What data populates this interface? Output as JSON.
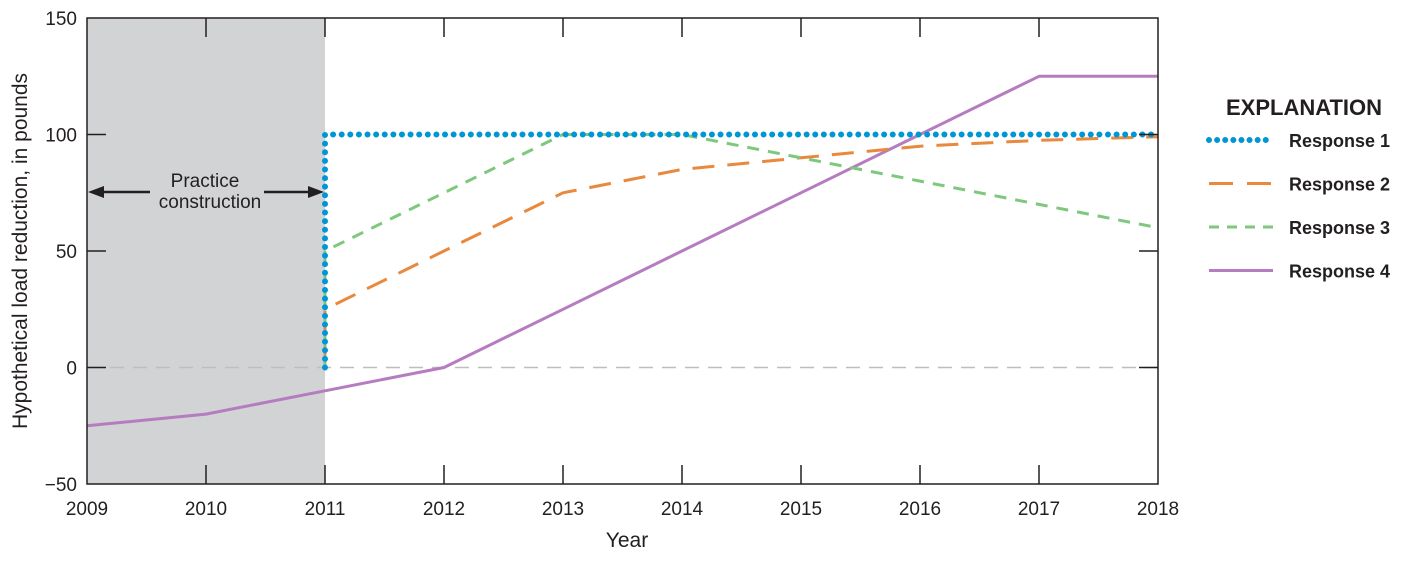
{
  "chart_data": {
    "type": "line",
    "title": "",
    "xlabel": "Year",
    "ylabel": "Hypothetical load reduction, in pounds",
    "xlim": [
      2009,
      2018
    ],
    "ylim": [
      -50,
      150
    ],
    "x_ticks": [
      2009,
      2010,
      2011,
      2012,
      2013,
      2014,
      2015,
      2016,
      2017,
      2018
    ],
    "x_tick_labels": [
      "2009",
      "2010",
      "2011",
      "2012",
      "2013",
      "2014",
      "2015",
      "2016",
      "2017",
      "2018"
    ],
    "y_ticks": [
      -50,
      0,
      50,
      100,
      150
    ],
    "y_tick_labels": [
      "−50",
      "0",
      "50",
      "100",
      "150"
    ],
    "grid": false,
    "reference_line": {
      "y": 0,
      "style": "dashed",
      "color": "#bcbec0"
    },
    "shaded_region": {
      "x": [
        2009,
        2011
      ],
      "color": "#d1d3d4",
      "annotation": [
        "Practice",
        "construction"
      ]
    },
    "legend": {
      "title": "EXPLANATION",
      "position": "right"
    },
    "series": [
      {
        "name": "Response 1",
        "style": "dotted",
        "color": "#0096d6",
        "points": [
          [
            2011,
            0
          ],
          [
            2011,
            100
          ],
          [
            2018,
            100
          ]
        ]
      },
      {
        "name": "Response 2",
        "style": "long-dash",
        "color": "#e8893d",
        "points": [
          [
            2011,
            0
          ],
          [
            2011,
            25
          ],
          [
            2012,
            50
          ],
          [
            2013,
            75
          ],
          [
            2014,
            85
          ],
          [
            2015,
            90
          ],
          [
            2016,
            95
          ],
          [
            2017,
            97.5
          ],
          [
            2018,
            99
          ]
        ]
      },
      {
        "name": "Response 3",
        "style": "short-dash",
        "color": "#7dc87d",
        "points": [
          [
            2011,
            0
          ],
          [
            2011,
            50
          ],
          [
            2012,
            75
          ],
          [
            2013,
            100
          ],
          [
            2014,
            100
          ],
          [
            2015,
            90
          ],
          [
            2016,
            80
          ],
          [
            2017,
            70
          ],
          [
            2018,
            60
          ]
        ]
      },
      {
        "name": "Response 4",
        "style": "solid",
        "color": "#b57cc0",
        "points": [
          [
            2009,
            -25
          ],
          [
            2010,
            -20
          ],
          [
            2011,
            -10
          ],
          [
            2012,
            0
          ],
          [
            2013,
            25
          ],
          [
            2014,
            50
          ],
          [
            2015,
            75
          ],
          [
            2016,
            100
          ],
          [
            2017,
            125
          ],
          [
            2018,
            125
          ]
        ]
      }
    ]
  }
}
